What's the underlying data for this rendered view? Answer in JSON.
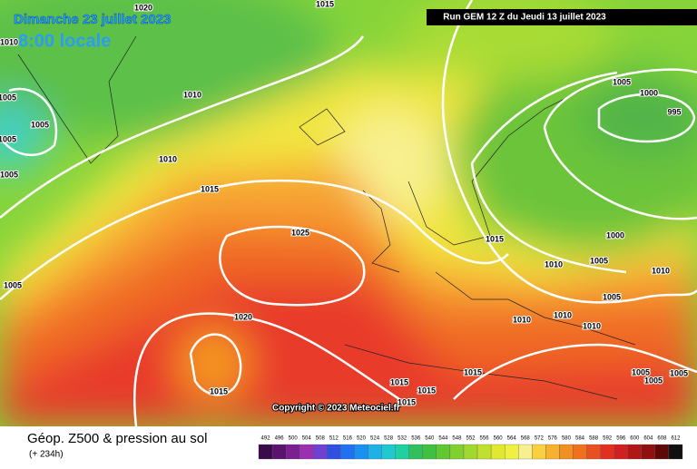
{
  "header": {
    "date": "Dimanche 23 juillet 2023",
    "time": "8:00 locale",
    "run": "Run GEM 12 Z du Jeudi 13 juillet 2023"
  },
  "isobar_labels": [
    "1015",
    "1020",
    "1010",
    "1005",
    "1005",
    "1005",
    "1005",
    "1010",
    "1010",
    "1015",
    "1025",
    "1015",
    "1005",
    "1000",
    "995",
    "1000",
    "1005",
    "1010",
    "1010",
    "1005",
    "1005",
    "1020",
    "1010",
    "1010",
    "1010",
    "1015",
    "1015",
    "1015",
    "1015",
    "1015",
    "1005",
    "1005",
    "1005"
  ],
  "copyright": "Copyright © 2023 Meteociel.fr",
  "footer": {
    "title": "Géop. Z500 & pression au sol",
    "lead": "(+ 234h)"
  },
  "legend": {
    "labels": [
      "492",
      "496",
      "500",
      "504",
      "508",
      "512",
      "516",
      "520",
      "524",
      "528",
      "532",
      "536",
      "540",
      "544",
      "548",
      "552",
      "556",
      "560",
      "564",
      "568",
      "572",
      "576",
      "580",
      "584",
      "588",
      "592",
      "596",
      "600",
      "604",
      "608",
      "612"
    ],
    "colors": [
      "#3a0a4a",
      "#5a1470",
      "#7a2090",
      "#9a30b0",
      "#7040d0",
      "#3050e0",
      "#2070f0",
      "#1a90f0",
      "#20b0e8",
      "#20c8d0",
      "#20d0a0",
      "#30c060",
      "#40c040",
      "#60c830",
      "#80d030",
      "#a0d830",
      "#c0e030",
      "#e0e830",
      "#f0f040",
      "#f8f090",
      "#f8d040",
      "#f8b030",
      "#f09020",
      "#f07020",
      "#e85020",
      "#e03020",
      "#d02020",
      "#b01818",
      "#901010",
      "#600808",
      "#101010"
    ]
  }
}
